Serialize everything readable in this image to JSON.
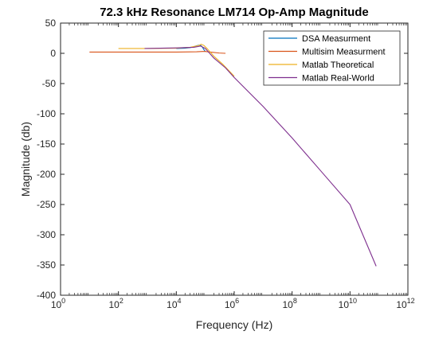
{
  "chart_data": {
    "type": "line",
    "title": "72.3 kHz Resonance LM714 Op-Amp Magnitude",
    "xlabel": "Frequency (Hz)",
    "ylabel": "Magnitude (db)",
    "xscale": "log",
    "xlim": [
      1,
      1000000000000
    ],
    "ylim": [
      -400,
      50
    ],
    "grid": false,
    "legend_position": "top-right",
    "x_ticks": [
      {
        "value": 1,
        "base": "10",
        "exp": "0"
      },
      {
        "value": 100,
        "base": "10",
        "exp": "2"
      },
      {
        "value": 10000,
        "base": "10",
        "exp": "4"
      },
      {
        "value": 1000000,
        "base": "10",
        "exp": "6"
      },
      {
        "value": 100000000,
        "base": "10",
        "exp": "8"
      },
      {
        "value": 10000000000,
        "base": "10",
        "exp": "10"
      },
      {
        "value": 1000000000000,
        "base": "10",
        "exp": "12"
      }
    ],
    "y_ticks": [
      {
        "value": 50,
        "label": "50"
      },
      {
        "value": 0,
        "label": "0"
      },
      {
        "value": -50,
        "label": "-50"
      },
      {
        "value": -100,
        "label": "-100"
      },
      {
        "value": -150,
        "label": "-150"
      },
      {
        "value": -200,
        "label": "-200"
      },
      {
        "value": -250,
        "label": "-250"
      },
      {
        "value": -300,
        "label": "-300"
      },
      {
        "value": -350,
        "label": "-350"
      },
      {
        "value": -400,
        "label": "-400"
      }
    ],
    "series": [
      {
        "name": "DSA Measurment",
        "color": "#0072BD",
        "x": [
          10000,
          20000,
          30000,
          40000,
          50000,
          60000,
          70000,
          80000,
          90000,
          100000
        ],
        "y": [
          8,
          8.5,
          9.5,
          11,
          12.5,
          13.5,
          13,
          10,
          6,
          3
        ]
      },
      {
        "name": "Multisim Measurment",
        "color": "#D95319",
        "x": [
          10,
          1000,
          10000,
          50000,
          80000,
          100000,
          150000,
          300000,
          500000
        ],
        "y": [
          2,
          2,
          2,
          2.5,
          3,
          3,
          2,
          0.5,
          0
        ]
      },
      {
        "name": "Matlab Theoretical",
        "color": "#EDB120",
        "x": [
          100,
          1000,
          10000,
          30000,
          60000,
          72300,
          90000,
          120000,
          200000,
          400000,
          1000000
        ],
        "y": [
          8,
          8,
          8.5,
          10,
          13,
          15,
          13,
          7,
          -5,
          -18,
          -38
        ]
      },
      {
        "name": "Matlab Real-World",
        "color": "#7E2F8E",
        "x": [
          800,
          10000,
          40000,
          70000,
          100000,
          200000,
          500000,
          1000000,
          10000000,
          100000000,
          1000000000,
          10000000000,
          80000000000
        ],
        "y": [
          8,
          9,
          10,
          12,
          8,
          -8,
          -24,
          -40,
          -88,
          -140,
          -195,
          -250,
          -352
        ]
      }
    ]
  }
}
